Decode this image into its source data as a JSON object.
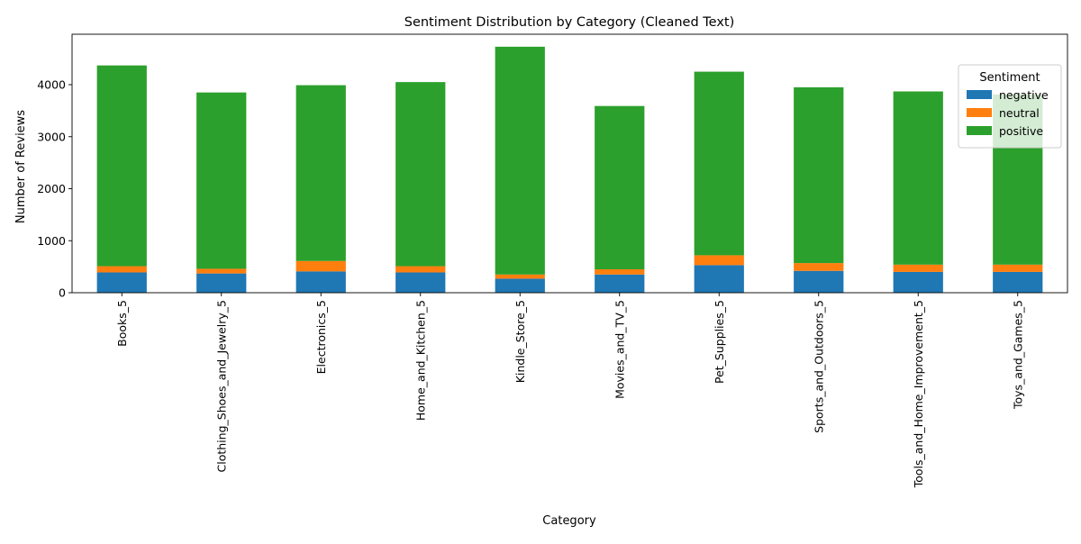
{
  "chart_data": {
    "type": "bar",
    "stacked": true,
    "title": "Sentiment Distribution by Category (Cleaned Text)",
    "xlabel": "Category",
    "ylabel": "Number of Reviews",
    "ylim": [
      0,
      4970
    ],
    "yticks": [
      0,
      1000,
      2000,
      3000,
      4000
    ],
    "grid": false,
    "legend": {
      "title": "Sentiment",
      "placement": "top-right"
    },
    "categories": [
      "Books_5",
      "Clothing_Shoes_and_Jewelry_5",
      "Electronics_5",
      "Home_and_Kitchen_5",
      "Kindle_Store_5",
      "Movies_and_TV_5",
      "Pet_Supplies_5",
      "Sports_and_Outdoors_5",
      "Tools_and_Home_Improvement_5",
      "Toys_and_Games_5"
    ],
    "series": [
      {
        "name": "negative",
        "color": "#1f77b4",
        "values": [
          390,
          370,
          410,
          390,
          270,
          350,
          530,
          420,
          400,
          400
        ]
      },
      {
        "name": "neutral",
        "color": "#ff7f0e",
        "values": [
          120,
          90,
          200,
          120,
          80,
          100,
          190,
          150,
          140,
          140
        ]
      },
      {
        "name": "positive",
        "color": "#2ca02c",
        "values": [
          3860,
          3390,
          3380,
          3540,
          4380,
          3140,
          3530,
          3380,
          3330,
          3270
        ]
      }
    ]
  }
}
